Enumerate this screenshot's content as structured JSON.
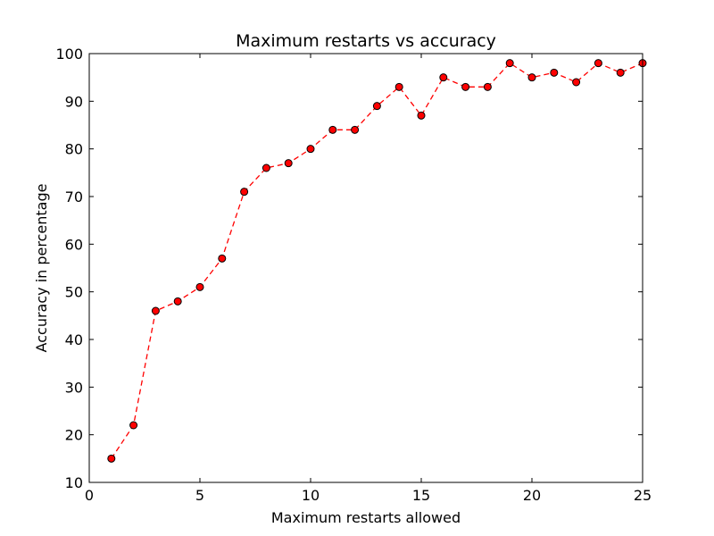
{
  "chart_data": {
    "type": "line",
    "title": "Maximum restarts vs accuracy",
    "xlabel": "Maximum restarts allowed",
    "ylabel": "Accuracy in percentage",
    "xlim": [
      0,
      25
    ],
    "ylim": [
      10,
      100
    ],
    "xticks": [
      0,
      5,
      10,
      15,
      20,
      25
    ],
    "yticks": [
      10,
      20,
      30,
      40,
      50,
      60,
      70,
      80,
      90,
      100
    ],
    "grid": false,
    "series": [
      {
        "line_color": "#ff0000",
        "line_style": "dashed",
        "marker": "circle",
        "marker_color": "#ff0000",
        "x": [
          1,
          2,
          3,
          4,
          5,
          6,
          7,
          8,
          9,
          10,
          11,
          12,
          13,
          14,
          15,
          16,
          17,
          18,
          19,
          20,
          21,
          22,
          23,
          24,
          25
        ],
        "y": [
          15,
          22,
          46,
          48,
          51,
          57,
          71,
          76,
          77,
          80,
          84,
          84,
          89,
          93,
          87,
          95,
          93,
          93,
          98,
          95,
          96,
          94,
          98,
          96,
          98
        ]
      }
    ]
  }
}
